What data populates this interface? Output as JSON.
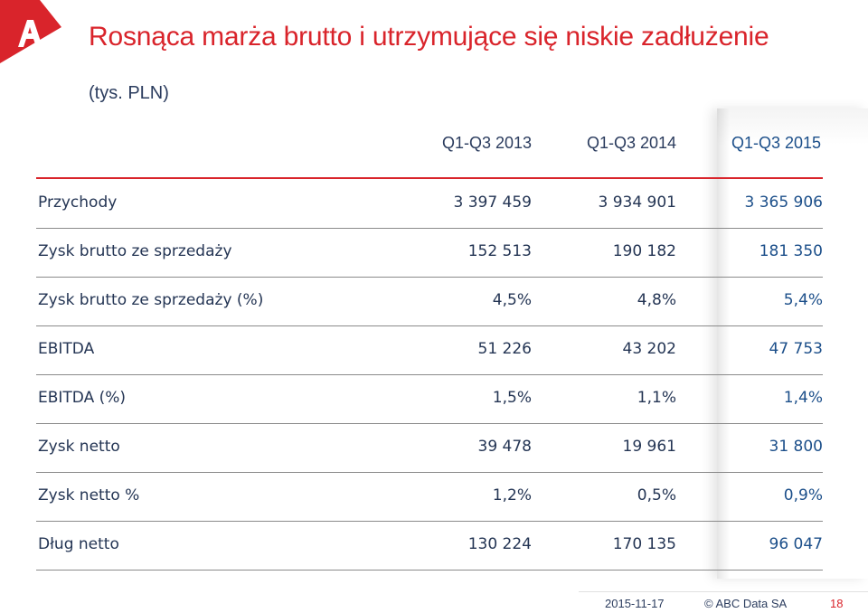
{
  "slide": {
    "title": "Rosnąca marża brutto i utrzymujące się niskie zadłużenie",
    "unit": "(tys. PLN)",
    "accent_color": "#d9242b",
    "logo_icon": "abc-data-logo-icon"
  },
  "table": {
    "columns": [
      "Q1-Q3 2013",
      "Q1-Q3 2014",
      "Q1-Q3 2015"
    ],
    "rows": [
      {
        "label": "Przychody",
        "values": [
          "3 397 459",
          "3 934 901",
          "3 365 906"
        ]
      },
      {
        "label": "Zysk brutto ze sprzedaży",
        "values": [
          "152 513",
          "190 182",
          "181 350"
        ]
      },
      {
        "label": "Zysk brutto ze sprzedaży (%)",
        "values": [
          "4,5%",
          "4,8%",
          "5,4%"
        ]
      },
      {
        "label": "EBITDA",
        "values": [
          "51 226",
          "43 202",
          "47 753"
        ]
      },
      {
        "label": "EBITDA (%)",
        "values": [
          "1,5%",
          "1,1%",
          "1,4%"
        ]
      },
      {
        "label": "Zysk netto",
        "values": [
          "39 478",
          "19 961",
          "31 800"
        ]
      },
      {
        "label": "Zysk netto %",
        "values": [
          "1,2%",
          "0,5%",
          "0,9%"
        ]
      },
      {
        "label": "Dług netto",
        "values": [
          "130 224",
          "170 135",
          "96 047"
        ]
      }
    ]
  },
  "footer": {
    "date": "2015-11-17",
    "copyright": "© ABC Data SA",
    "page": "18"
  }
}
